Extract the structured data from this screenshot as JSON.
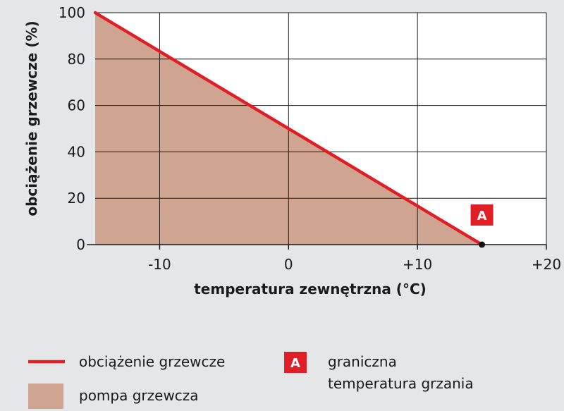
{
  "chart_data": {
    "type": "area",
    "xlabel": "temperatura zewnętrzna (°C)",
    "ylabel": "obciążenie grzewcze (%)",
    "xlim": [
      -15,
      20
    ],
    "ylim": [
      0,
      100
    ],
    "x_ticks": [
      -10,
      0,
      10,
      20
    ],
    "x_tick_labels": [
      "-10",
      "0",
      "+10",
      "+20"
    ],
    "y_ticks": [
      0,
      20,
      40,
      60,
      80,
      100
    ],
    "y_tick_labels": [
      "0",
      "20",
      "40",
      "60",
      "80",
      "100"
    ],
    "grid": true,
    "series": [
      {
        "name": "obciążenie grzewcze",
        "kind": "line",
        "color": "#e01e26",
        "x": [
          -15,
          15
        ],
        "y": [
          100,
          0
        ]
      },
      {
        "name": "pompa grzewcza",
        "kind": "area",
        "color": "#cfa591",
        "x": [
          -15,
          15
        ],
        "y": [
          100,
          0
        ]
      }
    ],
    "annotations": [
      {
        "label": "A",
        "x": 15,
        "y": 0,
        "color": "#e01e26"
      }
    ]
  },
  "legend": {
    "line_label": "obciążenie grzewcze",
    "area_label": "pompa grzewcza",
    "marker_symbol": "A",
    "marker_line1": "graniczna",
    "marker_line2": "temperatura grzania"
  },
  "colors": {
    "background": "#e5e6e7",
    "plot_background": "#ffffff",
    "line": "#e01e26",
    "area": "#cfa591",
    "grid": "#1a1a1a"
  }
}
